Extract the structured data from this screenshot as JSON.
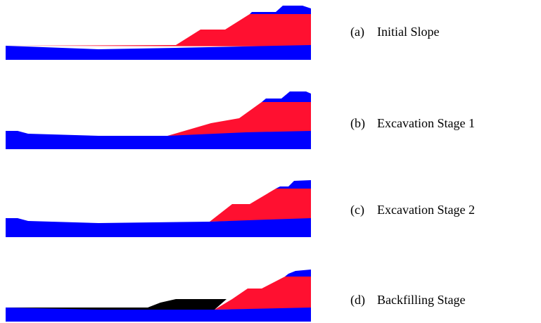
{
  "panels": [
    {
      "label": "(a)",
      "title": "Initial Slope"
    },
    {
      "label": "(b)",
      "title": "Excavation Stage 1"
    },
    {
      "label": "(c)",
      "title": "Excavation Stage 2"
    },
    {
      "label": "(d)",
      "title": "Backfilling Stage"
    }
  ]
}
